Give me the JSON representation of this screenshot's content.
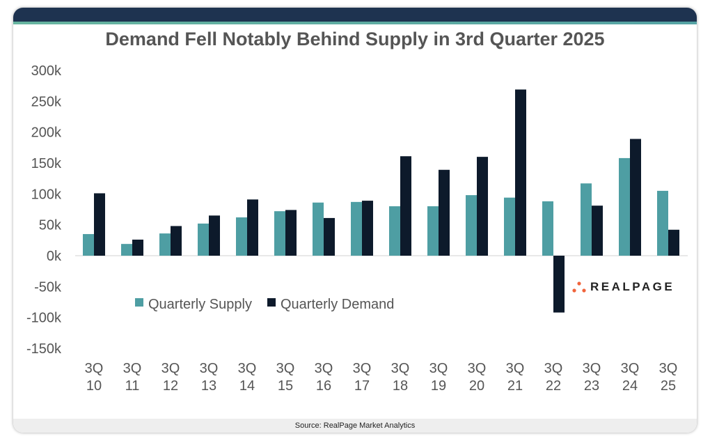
{
  "source": "Source: RealPage Market Analytics",
  "logo_text": "REALPAGE",
  "colors": {
    "supply": "#4e9ea3",
    "demand": "#0d1a2b",
    "header": "#1e3350",
    "logo_dots": "#f0643c"
  },
  "chart_data": {
    "type": "bar",
    "title": "Demand Fell Notably Behind Supply in 3rd Quarter 2025",
    "categories": [
      [
        "3Q",
        "10"
      ],
      [
        "3Q",
        "11"
      ],
      [
        "3Q",
        "12"
      ],
      [
        "3Q",
        "13"
      ],
      [
        "3Q",
        "14"
      ],
      [
        "3Q",
        "15"
      ],
      [
        "3Q",
        "16"
      ],
      [
        "3Q",
        "17"
      ],
      [
        "3Q",
        "18"
      ],
      [
        "3Q",
        "19"
      ],
      [
        "3Q",
        "20"
      ],
      [
        "3Q",
        "21"
      ],
      [
        "3Q",
        "22"
      ],
      [
        "3Q",
        "23"
      ],
      [
        "3Q",
        "24"
      ],
      [
        "3Q",
        "25"
      ]
    ],
    "series": [
      {
        "name": "Quarterly Supply",
        "values": [
          35000,
          19000,
          36000,
          52000,
          62000,
          72000,
          86000,
          87000,
          80000,
          80000,
          98000,
          94000,
          88000,
          117000,
          158000,
          105000
        ]
      },
      {
        "name": "Quarterly Demand",
        "values": [
          101000,
          26000,
          48000,
          65000,
          91000,
          74000,
          61000,
          89000,
          161000,
          139000,
          160000,
          269000,
          -92000,
          81000,
          189000,
          42000
        ]
      }
    ],
    "ylim": [
      -150000,
      300000
    ],
    "yticks": [
      "300k",
      "250k",
      "200k",
      "150k",
      "100k",
      "50k",
      "0k",
      "-50k",
      "-100k",
      "-150k"
    ],
    "ytick_values": [
      300000,
      250000,
      200000,
      150000,
      100000,
      50000,
      0,
      -50000,
      -100000,
      -150000
    ],
    "grid": false,
    "legend": "bottom-left inside"
  }
}
